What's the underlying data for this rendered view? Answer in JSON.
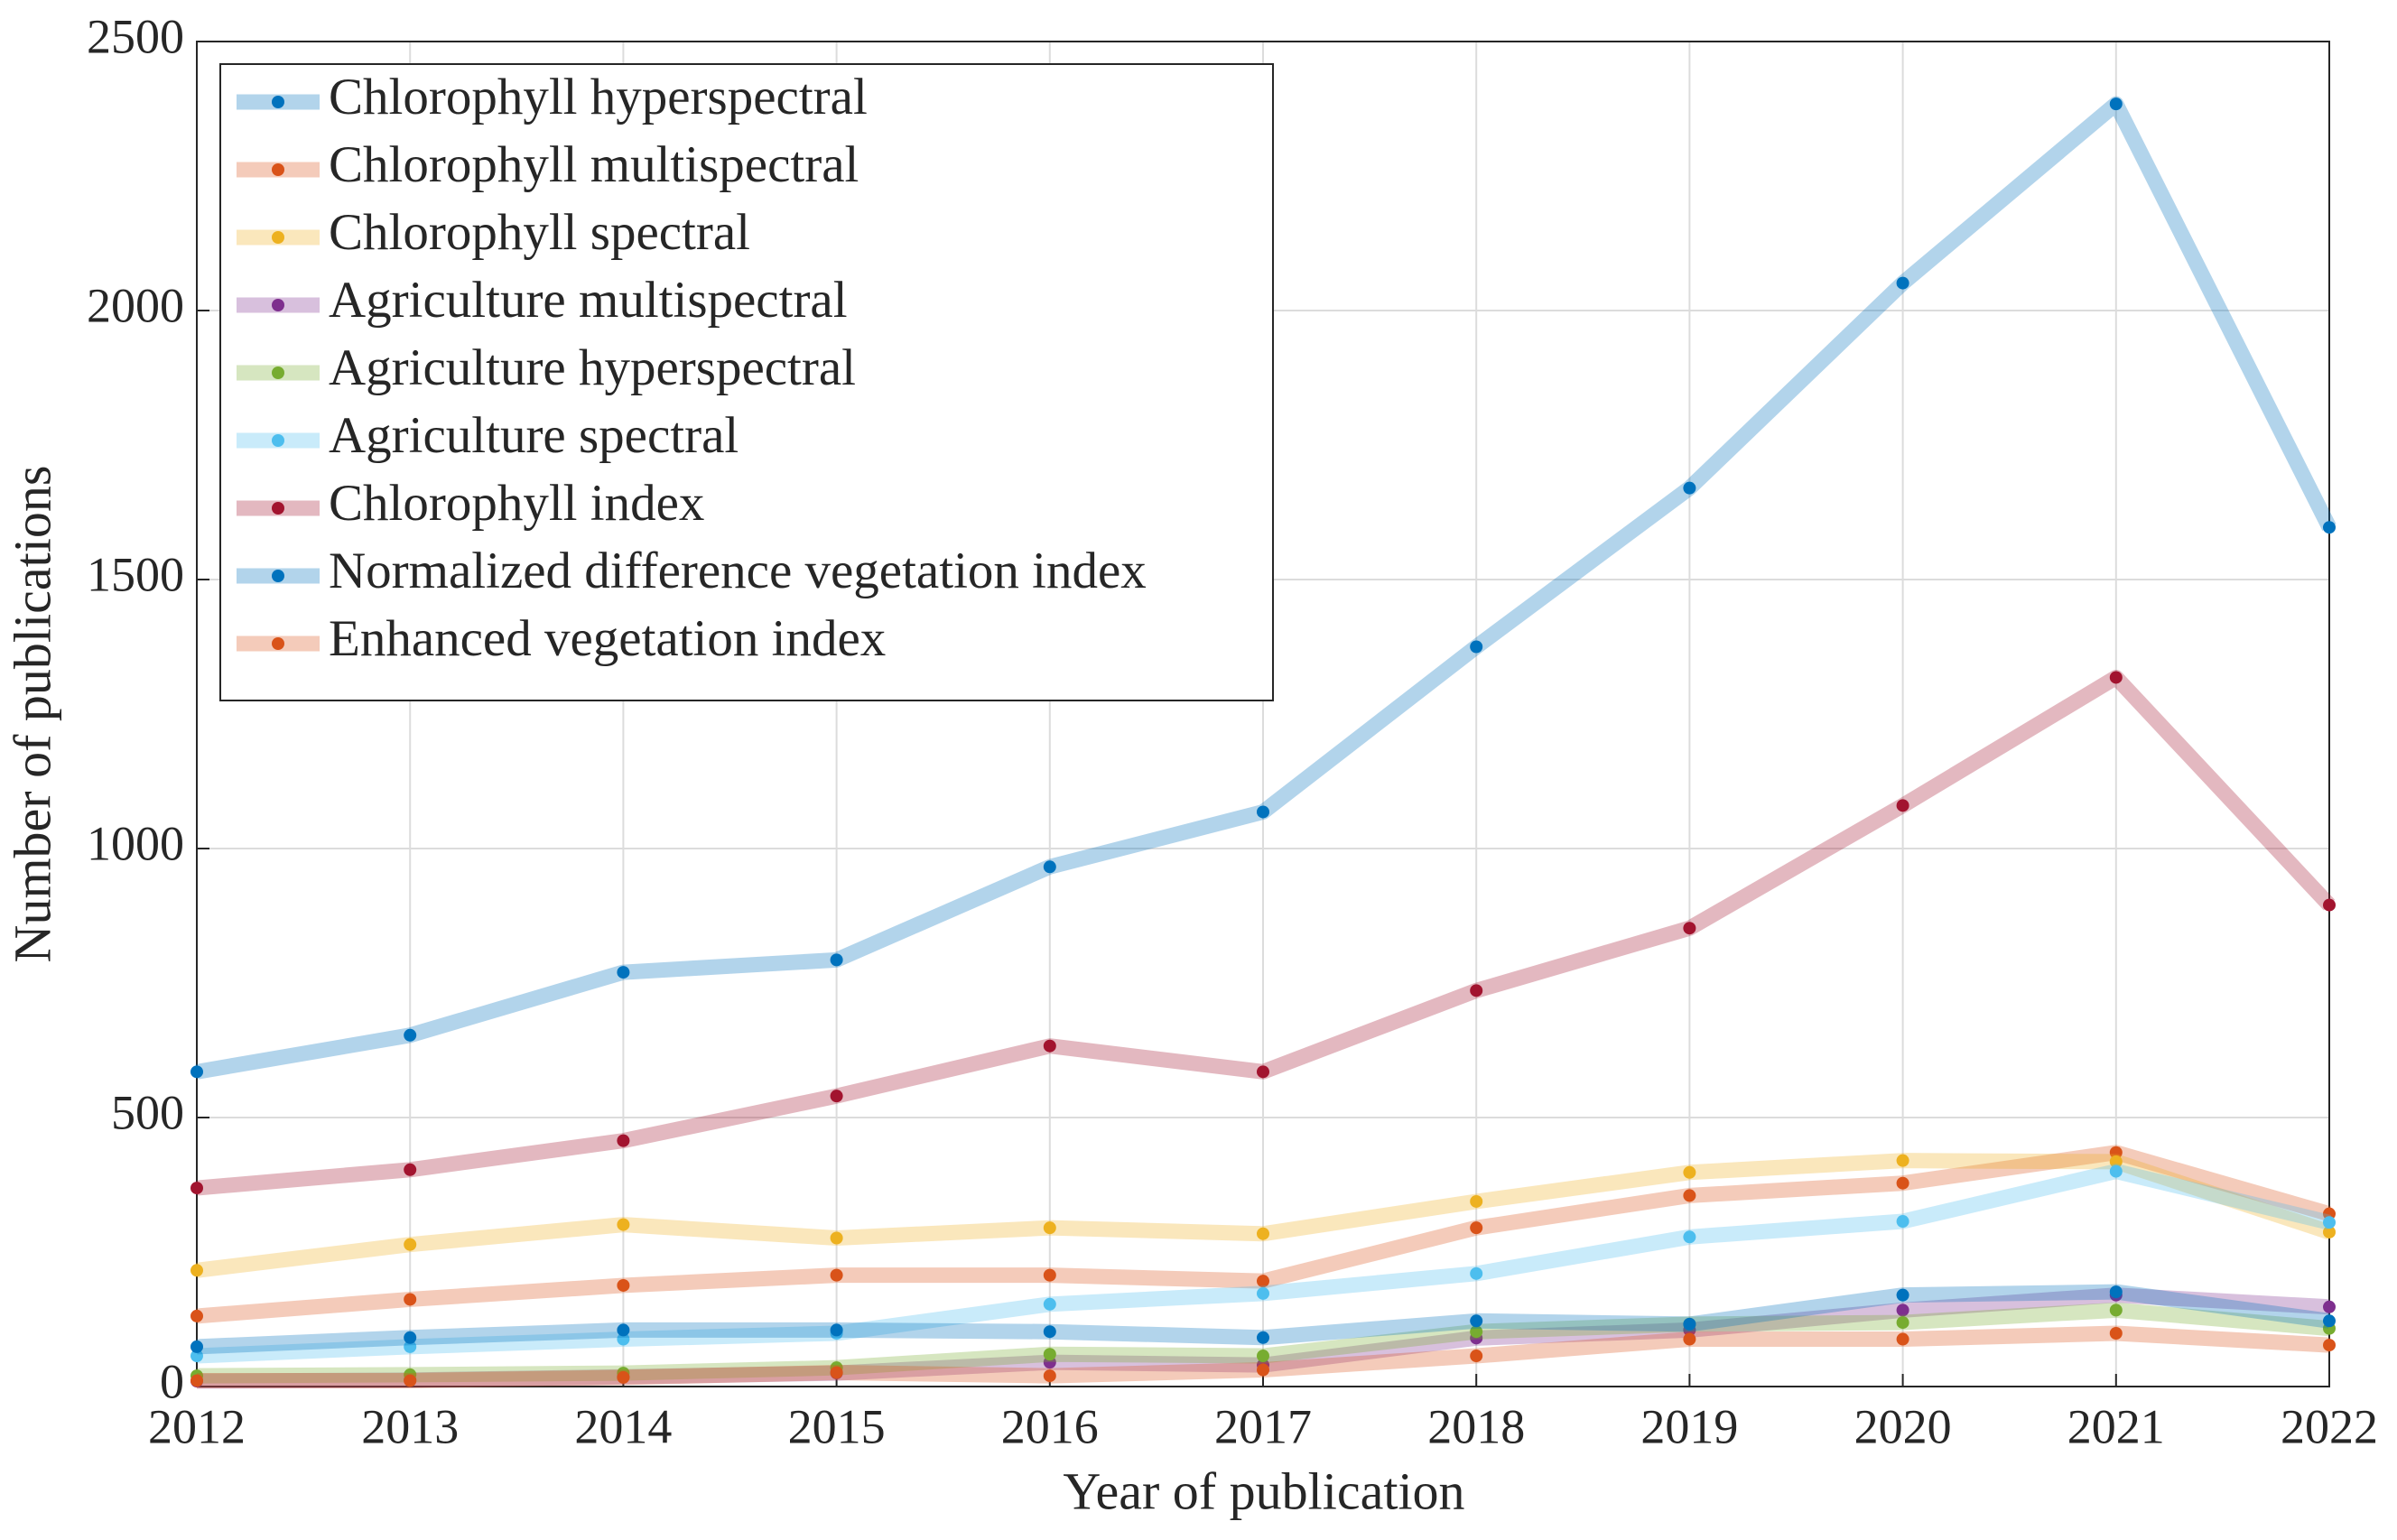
{
  "chart_data": {
    "type": "line",
    "xlabel": "Year of publication",
    "ylabel": "Number of publications",
    "x": [
      2012,
      2013,
      2014,
      2015,
      2016,
      2017,
      2018,
      2019,
      2020,
      2021,
      2022
    ],
    "xlim": [
      2012,
      2022
    ],
    "xticks": [
      2012,
      2013,
      2014,
      2015,
      2016,
      2017,
      2018,
      2019,
      2020,
      2021,
      2022
    ],
    "ylim": [
      0,
      2500
    ],
    "yticks": [
      0,
      500,
      1000,
      1500,
      2000,
      2500
    ],
    "grid": true,
    "legend": "northwest",
    "series": [
      {
        "name": "Chlorophyll hyperspectral",
        "color": "#0072BD",
        "values": [
          585,
          653,
          770,
          793,
          966,
          1068,
          1375,
          1670,
          2051,
          2384,
          1597
        ]
      },
      {
        "name": "Chlorophyll multispectral",
        "color": "#D95319",
        "values": [
          131,
          162,
          188,
          207,
          207,
          196,
          295,
          355,
          378,
          435,
          321
        ]
      },
      {
        "name": "Chlorophyll spectral",
        "color": "#EDB120",
        "values": [
          216,
          264,
          301,
          276,
          295,
          284,
          344,
          398,
          420,
          418,
          287
        ]
      },
      {
        "name": "Agriculture multispectral",
        "color": "#7E2F8E",
        "values": [
          10,
          12,
          18,
          25,
          45,
          40,
          90,
          105,
          142,
          170,
          148
        ]
      },
      {
        "name": "Agriculture hyperspectral",
        "color": "#77AC30",
        "values": [
          20,
          22,
          25,
          35,
          60,
          57,
          102,
          116,
          119,
          142,
          108
        ]
      },
      {
        "name": "Agriculture spectral",
        "color": "#4DBEEE",
        "values": [
          57,
          74,
          88,
          99,
          153,
          173,
          210,
          278,
          307,
          400,
          305
        ]
      },
      {
        "name": "Chlorophyll index",
        "color": "#A2142F",
        "values": [
          369,
          403,
          457,
          540,
          633,
          585,
          736,
          852,
          1080,
          1318,
          895
        ]
      },
      {
        "name": "Normalized difference vegetation index",
        "color": "#0072BD",
        "values": [
          74,
          91,
          105,
          105,
          102,
          91,
          122,
          116,
          170,
          176,
          122
        ]
      },
      {
        "name": "Enhanced vegetation index",
        "color": "#D95319",
        "values": [
          11,
          11,
          17,
          26,
          20,
          31,
          57,
          88,
          88,
          99,
          77
        ]
      }
    ]
  }
}
